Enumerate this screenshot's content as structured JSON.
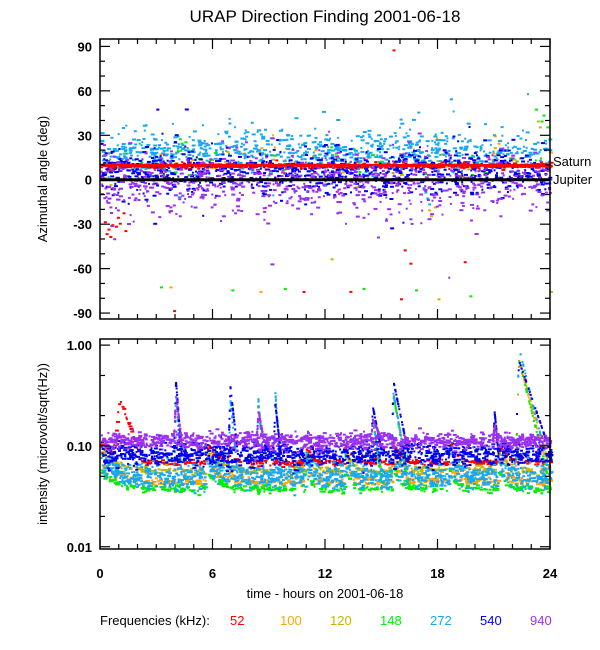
{
  "chart_data": [
    {
      "type": "scatter",
      "title": "URAP Direction Finding  2001-06-18",
      "xlabel": "time - hours on 2001-06-18",
      "ylabel": "Azimuthal angle (deg)",
      "xlim": [
        0,
        24
      ],
      "ylim": [
        -94,
        95
      ],
      "x_ticks": [
        0,
        6,
        12,
        18,
        24
      ],
      "x_minor_step": 1,
      "y_ticks": [
        90,
        60,
        30,
        0,
        -30,
        -60,
        -90
      ],
      "y_tick_labels": [
        "90",
        "60",
        "30",
        "0",
        "-30",
        "-60",
        "-90"
      ],
      "y_minor_step": 10,
      "grid": false,
      "reference_lines": [
        {
          "name": "Saturn",
          "y": 10,
          "color": "#ff0000"
        },
        {
          "name": "Jupiter",
          "y": 0,
          "color": "#000000"
        }
      ],
      "series": [
        {
          "name": "52",
          "color": "#ff0000",
          "center": 10,
          "spread": 1,
          "density": 0.3,
          "extras": [
            [
              0.2,
              -28
            ],
            [
              0.4,
              -33
            ],
            [
              0.6,
              -30
            ],
            [
              0.8,
              -31
            ],
            [
              1.0,
              -29
            ],
            [
              1.2,
              -22
            ],
            [
              0.3,
              -36
            ],
            [
              0.5,
              -38
            ],
            [
              1.3,
              -34
            ],
            [
              0.9,
              -25
            ],
            [
              3.9,
              -88
            ],
            [
              10.8,
              -75
            ],
            [
              16.5,
              -56
            ],
            [
              16.0,
              -80
            ],
            [
              16.2,
              -47
            ],
            [
              19.4,
              -55
            ],
            [
              13.3,
              -75
            ],
            [
              15.6,
              88
            ]
          ]
        },
        {
          "name": "100",
          "color": "#ffa500",
          "center": 14,
          "spread": 6,
          "density": 0.05,
          "extras": [
            [
              4.3,
              25
            ],
            [
              17.5,
              -20
            ],
            [
              17.6,
              -24
            ],
            [
              17.8,
              -18
            ],
            [
              21.0,
              30
            ],
            [
              21.2,
              25
            ],
            [
              21.3,
              27
            ],
            [
              21.5,
              20
            ],
            [
              3.7,
              -72
            ],
            [
              8.5,
              -75
            ]
          ]
        },
        {
          "name": "120",
          "color": "#c8b400",
          "center": 8,
          "spread": 6,
          "density": 0.05,
          "extras": [
            [
              0.2,
              2
            ],
            [
              0.5,
              -3
            ],
            [
              21.0,
              22
            ],
            [
              21.1,
              18
            ],
            [
              21.2,
              20
            ],
            [
              23.3,
              40
            ],
            [
              23.4,
              36
            ],
            [
              12.3,
              -53
            ],
            [
              18.0,
              -80
            ],
            [
              24.0,
              -75
            ]
          ]
        },
        {
          "name": "148",
          "color": "#00ee00",
          "center": 12,
          "spread": 6,
          "density": 0.06,
          "extras": [
            [
              4.2,
              28
            ],
            [
              4.3,
              25
            ],
            [
              4.4,
              22
            ],
            [
              4.1,
              20
            ],
            [
              4.5,
              26
            ],
            [
              4.3,
              18
            ],
            [
              13.5,
              21
            ],
            [
              14.7,
              16
            ],
            [
              21.8,
              15
            ],
            [
              22.0,
              10
            ],
            [
              23.2,
              48
            ],
            [
              23.5,
              40
            ],
            [
              23.8,
              36
            ],
            [
              23.6,
              44
            ],
            [
              3.2,
              -72
            ],
            [
              7.0,
              -74
            ],
            [
              9.8,
              -73
            ],
            [
              16.8,
              -74
            ],
            [
              19.7,
              -78
            ],
            [
              14.0,
              -73
            ]
          ]
        },
        {
          "name": "272",
          "color": "#18a8f0",
          "center": 20,
          "spread": 7,
          "density": 0.9,
          "extras": [
            [
              17.3,
              -8
            ],
            [
              17.4,
              -12
            ],
            [
              17.5,
              -16
            ],
            [
              17.2,
              -5
            ]
          ]
        },
        {
          "name": "540",
          "color": "#0000ee",
          "center": 6,
          "spread": 7,
          "density": 1.0,
          "extras": [
            [
              3.0,
              48
            ],
            [
              0.3,
              -4
            ],
            [
              23.9,
              -5
            ]
          ]
        },
        {
          "name": "940",
          "color": "#9a30f0",
          "center": -2,
          "spread": 9,
          "density": 0.85,
          "extras": [
            [
              0.5,
              -18
            ],
            [
              0.9,
              -20
            ],
            [
              2.0,
              -13
            ],
            [
              2.5,
              -17
            ],
            [
              4.2,
              -24
            ],
            [
              5.9,
              -18
            ],
            [
              7.3,
              -20
            ],
            [
              8.7,
              -21
            ],
            [
              9.3,
              -15
            ],
            [
              12.6,
              -22
            ],
            [
              13.5,
              -16
            ],
            [
              14.0,
              -25
            ],
            [
              15.2,
              -27
            ],
            [
              16.5,
              -26
            ],
            [
              19.3,
              -17
            ],
            [
              21.3,
              -24
            ],
            [
              23.0,
              -16
            ],
            [
              23.8,
              -20
            ]
          ]
        }
      ]
    },
    {
      "type": "scatter",
      "xlabel": "time - hours on 2001-06-18",
      "ylabel": "intensity (microvolt/sqrt(Hz))",
      "yscale": "log",
      "xlim": [
        0,
        24
      ],
      "ylim": [
        0.0095,
        1.15
      ],
      "x_ticks": [
        0,
        6,
        12,
        18,
        24
      ],
      "x_minor_step": 1,
      "y_ticks": [
        1.0,
        0.1,
        0.01
      ],
      "y_tick_labels": [
        "1.00",
        "0.10",
        "0.01"
      ],
      "y_minor_ticks": [
        0.5,
        0.2,
        0.05,
        0.02
      ],
      "grid": false,
      "series": [
        {
          "name": "52",
          "color": "#ff0000",
          "level": 0.07,
          "spread": 0.03,
          "bump": {
            "start": 0.6,
            "peak": 1.0,
            "end": 2.2,
            "peak_value": 0.3
          }
        },
        {
          "name": "100",
          "color": "#ffa500",
          "level": 0.045,
          "spread": 0.04
        },
        {
          "name": "120",
          "color": "#c8b400",
          "level": 0.058,
          "spread": 0.04
        },
        {
          "name": "148",
          "color": "#00ee00",
          "level": 0.038,
          "spread": 0.04
        },
        {
          "name": "272",
          "color": "#18a8f0",
          "level": 0.05,
          "spread": 0.12
        },
        {
          "name": "540",
          "color": "#0000ee",
          "level": 0.085,
          "spread": 0.12
        },
        {
          "name": "940",
          "color": "#9a30f0",
          "level": 0.115,
          "spread": 0.08
        }
      ],
      "bursts": [
        {
          "start": 3.9,
          "peak": 4.0,
          "end": 4.3,
          "peak_value": 0.45,
          "series": [
            "540",
            "940",
            "272"
          ]
        },
        {
          "start": 6.8,
          "peak": 6.9,
          "end": 7.3,
          "peak_value": 0.4,
          "series": [
            "540",
            "272"
          ]
        },
        {
          "start": 8.3,
          "peak": 8.4,
          "end": 8.7,
          "peak_value": 0.3,
          "series": [
            "272",
            "940"
          ]
        },
        {
          "start": 9.2,
          "peak": 9.3,
          "end": 9.6,
          "peak_value": 0.35,
          "series": [
            "272",
            "540"
          ]
        },
        {
          "start": 14.4,
          "peak": 14.5,
          "end": 15.0,
          "peak_value": 0.25,
          "series": [
            "540",
            "272",
            "148",
            "940"
          ]
        },
        {
          "start": 15.5,
          "peak": 15.6,
          "end": 16.4,
          "peak_value": 0.45,
          "series": [
            "540",
            "272",
            "148",
            "100"
          ]
        },
        {
          "start": 20.9,
          "peak": 21.0,
          "end": 21.2,
          "peak_value": 0.22,
          "series": [
            "540",
            "940"
          ]
        },
        {
          "start": 22.1,
          "peak": 22.3,
          "end": 24.0,
          "peak_value": 0.95,
          "series": [
            "272",
            "540",
            "148",
            "100",
            "120"
          ]
        }
      ]
    }
  ],
  "legend": {
    "label": "Frequencies (kHz):",
    "entries": [
      {
        "text": "52",
        "color": "#ff0000"
      },
      {
        "text": "100",
        "color": "#ffa500"
      },
      {
        "text": "120",
        "color": "#c8b400"
      },
      {
        "text": "148",
        "color": "#00ee00"
      },
      {
        "text": "272",
        "color": "#18a8f0"
      },
      {
        "text": "540",
        "color": "#0000ee"
      },
      {
        "text": "940",
        "color": "#9a30f0"
      }
    ]
  }
}
